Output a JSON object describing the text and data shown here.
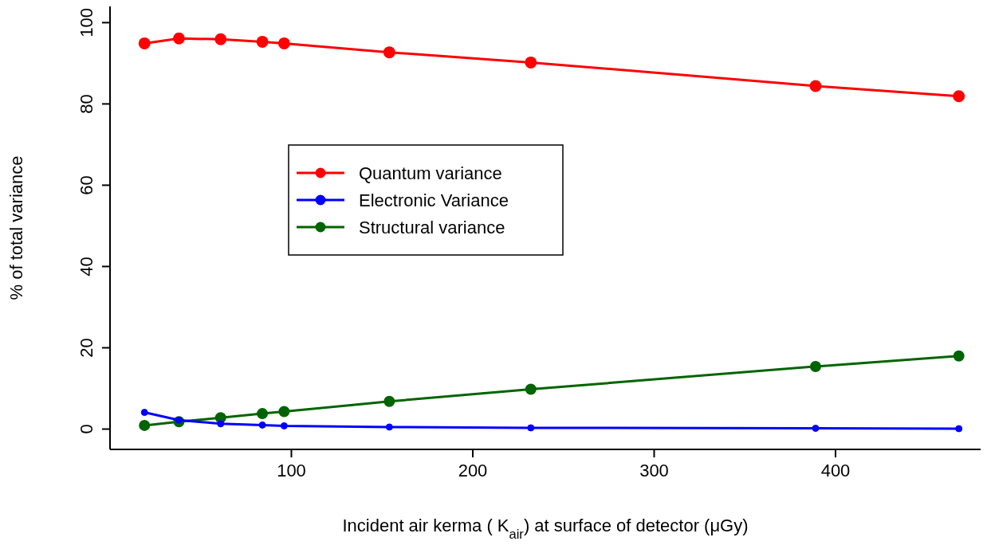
{
  "chart_data": {
    "type": "line",
    "xlabel": "Incident air kerma ( K$_{air}$) at surface of detector (μGy)",
    "ylabel": "% of total variance",
    "x": [
      19,
      38,
      61,
      84,
      96,
      154,
      232,
      389,
      468
    ],
    "series": [
      {
        "name": "Quantum variance",
        "color": "#ff0000",
        "values": [
          94.9,
          96.1,
          95.9,
          95.3,
          94.9,
          92.7,
          90.2,
          84.4,
          81.9
        ]
      },
      {
        "name": "Electronic Variance",
        "color": "#0000ff",
        "values": [
          4.1,
          2.2,
          1.3,
          1.0,
          0.8,
          0.5,
          0.3,
          0.2,
          0.1
        ]
      },
      {
        "name": "Structural variance",
        "color": "#006400",
        "values": [
          0.9,
          1.8,
          2.8,
          3.8,
          4.3,
          6.8,
          9.8,
          15.4,
          18.0
        ]
      }
    ],
    "xlim": [
      0,
      480
    ],
    "ylim": [
      -5,
      104
    ],
    "xticks": [
      100,
      200,
      300,
      400
    ],
    "yticks": [
      0,
      20,
      40,
      60,
      80,
      100
    ],
    "grid": false,
    "legend": "left",
    "marker": "circle",
    "line_style": "solid"
  }
}
